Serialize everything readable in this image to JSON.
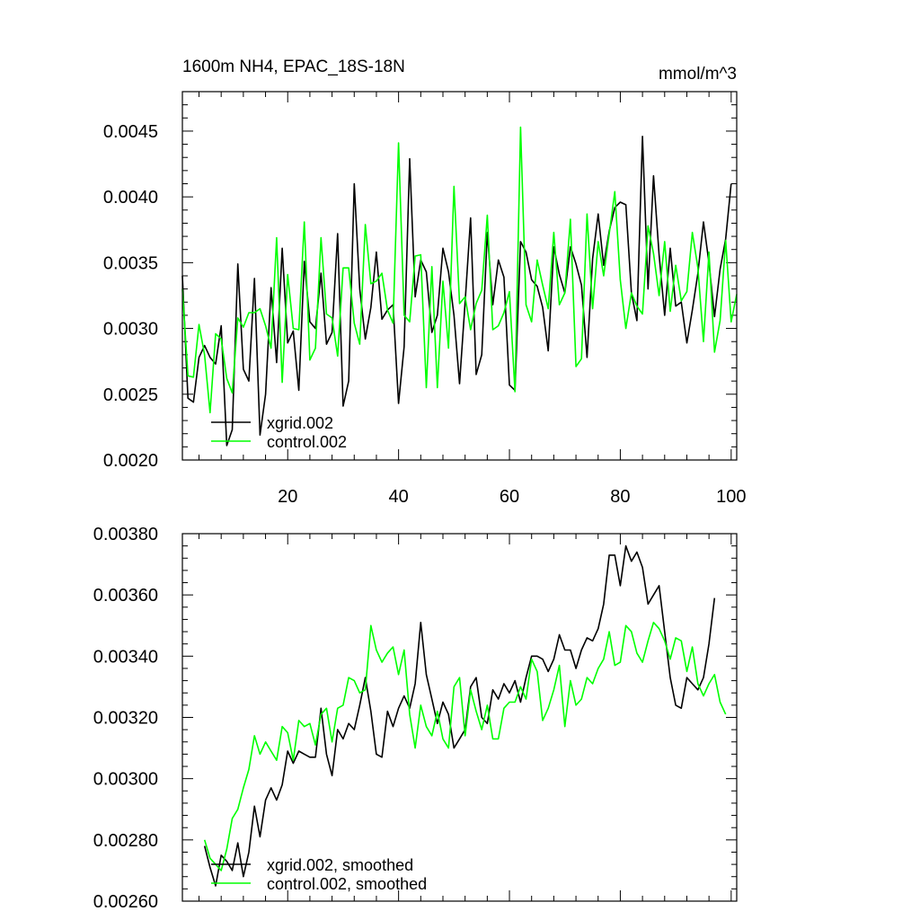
{
  "chart_data": [
    {
      "type": "line",
      "title": "1600m NH4, EPAC_18S-18N",
      "units": "mmol/m^3",
      "xlabel": "",
      "ylabel": "",
      "xlim": [
        1,
        101
      ],
      "ylim": [
        0.002,
        0.0048
      ],
      "xticks": [
        20,
        40,
        60,
        80,
        100
      ],
      "yticks": [
        0.002,
        0.0025,
        0.003,
        0.0035,
        0.004,
        0.0045
      ],
      "ytick_labels": [
        "0.0020",
        "0.0025",
        "0.0030",
        "0.0035",
        "0.0040",
        "0.0045"
      ],
      "xtick_labels": [
        "20",
        "40",
        "60",
        "80",
        "100"
      ],
      "legend_position": "bottom-left",
      "series": [
        {
          "name": "xgrid.002",
          "color": "#000000",
          "x_start": 1,
          "values": [
            0.0034,
            0.00247,
            0.00244,
            0.00278,
            0.00287,
            0.00278,
            0.00273,
            0.00302,
            0.00211,
            0.00223,
            0.00349,
            0.00269,
            0.0026,
            0.00338,
            0.00219,
            0.0025,
            0.00331,
            0.00274,
            0.00361,
            0.00289,
            0.00298,
            0.00253,
            0.00351,
            0.00305,
            0.003,
            0.00342,
            0.00288,
            0.00297,
            0.00372,
            0.00241,
            0.0026,
            0.0041,
            0.0033,
            0.00292,
            0.00316,
            0.00358,
            0.00307,
            0.00314,
            0.00318,
            0.00243,
            0.00286,
            0.00429,
            0.00324,
            0.00352,
            0.00343,
            0.00297,
            0.0031,
            0.00361,
            0.00343,
            0.0031,
            0.00258,
            0.0032,
            0.00384,
            0.00265,
            0.0028,
            0.00373,
            0.00318,
            0.00352,
            0.00339,
            0.00257,
            0.00253,
            0.00366,
            0.00358,
            0.00337,
            0.00332,
            0.00316,
            0.00283,
            0.00362,
            0.00341,
            0.00327,
            0.00362,
            0.00349,
            0.00333,
            0.00278,
            0.00353,
            0.00387,
            0.00348,
            0.00374,
            0.00392,
            0.00396,
            0.00394,
            0.00327,
            0.00306,
            0.00446,
            0.0033,
            0.00416,
            0.00356,
            0.0031,
            0.00361,
            0.00317,
            0.0032,
            0.00289,
            0.00314,
            0.00342,
            0.00381,
            0.0035,
            0.00309,
            0.00345,
            0.00368,
            0.0041
          ]
        },
        {
          "name": "control.002",
          "color": "#00ff00",
          "x_start": 1,
          "values": [
            0.0033,
            0.00264,
            0.00263,
            0.00303,
            0.0028,
            0.00236,
            0.00296,
            0.00292,
            0.00262,
            0.00251,
            0.00308,
            0.00301,
            0.00312,
            0.00312,
            0.00315,
            0.00302,
            0.00285,
            0.00369,
            0.00259,
            0.00341,
            0.003,
            0.00299,
            0.00381,
            0.00276,
            0.00285,
            0.00369,
            0.00311,
            0.00308,
            0.00279,
            0.00346,
            0.00346,
            0.00304,
            0.00288,
            0.00379,
            0.00334,
            0.00336,
            0.00342,
            0.00314,
            0.00304,
            0.00441,
            0.0031,
            0.00305,
            0.00355,
            0.00356,
            0.00255,
            0.00347,
            0.00255,
            0.00336,
            0.00285,
            0.00408,
            0.00319,
            0.00324,
            0.00299,
            0.00319,
            0.00329,
            0.00386,
            0.00299,
            0.00302,
            0.00312,
            0.00328,
            0.00252,
            0.00453,
            0.00318,
            0.00305,
            0.00352,
            0.00333,
            0.00315,
            0.00373,
            0.00318,
            0.00327,
            0.00383,
            0.00271,
            0.00277,
            0.00387,
            0.00315,
            0.00366,
            0.0034,
            0.00372,
            0.00404,
            0.00337,
            0.003,
            0.00327,
            0.00317,
            0.00311,
            0.00378,
            0.00357,
            0.00325,
            0.00366,
            0.00313,
            0.00348,
            0.00321,
            0.00328,
            0.00373,
            0.00346,
            0.0029,
            0.00358,
            0.00282,
            0.00306,
            0.00367,
            0.00305,
            0.00326
          ]
        }
      ]
    },
    {
      "type": "line",
      "title": "",
      "xlabel": "",
      "ylabel": "",
      "xlim": [
        1,
        101
      ],
      "ylim": [
        0.0026,
        0.0038
      ],
      "xticks": [
        20,
        40,
        60,
        80,
        100
      ],
      "yticks": [
        0.0026,
        0.0028,
        0.003,
        0.0032,
        0.0034,
        0.0036,
        0.0038
      ],
      "ytick_labels": [
        "0.00260",
        "0.00280",
        "0.00300",
        "0.00320",
        "0.00340",
        "0.00360",
        "0.00380"
      ],
      "legend_position": "bottom-left",
      "series": [
        {
          "name": "xgrid.002, smoothed",
          "color": "#000000",
          "x_start": 5,
          "values": [
            0.00278,
            0.00271,
            0.00265,
            0.00275,
            0.00273,
            0.0027,
            0.00279,
            0.00268,
            0.00276,
            0.00291,
            0.00281,
            0.00293,
            0.00297,
            0.00293,
            0.00298,
            0.00309,
            0.00305,
            0.00309,
            0.00308,
            0.00307,
            0.00307,
            0.00323,
            0.00308,
            0.00301,
            0.00316,
            0.00313,
            0.00318,
            0.00316,
            0.00324,
            0.00333,
            0.00322,
            0.00308,
            0.00307,
            0.00322,
            0.00317,
            0.00323,
            0.00327,
            0.00323,
            0.00331,
            0.00351,
            0.00334,
            0.00326,
            0.00318,
            0.00325,
            0.00321,
            0.0031,
            0.00313,
            0.00316,
            0.0033,
            0.00333,
            0.0032,
            0.00318,
            0.00329,
            0.00326,
            0.00331,
            0.00328,
            0.00332,
            0.00325,
            0.00333,
            0.0034,
            0.0034,
            0.00339,
            0.00335,
            0.00339,
            0.00347,
            0.00342,
            0.00342,
            0.00336,
            0.00342,
            0.00346,
            0.00345,
            0.00349,
            0.00357,
            0.00373,
            0.00373,
            0.00363,
            0.00376,
            0.00371,
            0.00374,
            0.00369,
            0.00357,
            0.0036,
            0.00363,
            0.00348,
            0.00333,
            0.00324,
            0.00323,
            0.00333,
            0.00331,
            0.00329,
            0.00333,
            0.00344,
            0.00359
          ]
        },
        {
          "name": "control.002, smoothed",
          "color": "#00ff00",
          "x_start": 5,
          "values": [
            0.0028,
            0.00274,
            0.00272,
            0.0027,
            0.00277,
            0.00287,
            0.0029,
            0.00297,
            0.00303,
            0.00314,
            0.00308,
            0.00312,
            0.00309,
            0.00306,
            0.00317,
            0.00315,
            0.00306,
            0.00319,
            0.00317,
            0.00318,
            0.00311,
            0.00321,
            0.00323,
            0.00312,
            0.00323,
            0.00324,
            0.00333,
            0.00332,
            0.00328,
            0.00329,
            0.0035,
            0.00342,
            0.00338,
            0.00341,
            0.00343,
            0.00334,
            0.00342,
            0.00321,
            0.0031,
            0.00324,
            0.00317,
            0.00314,
            0.00322,
            0.00313,
            0.0031,
            0.0033,
            0.00333,
            0.00314,
            0.00329,
            0.00322,
            0.00316,
            0.00324,
            0.00313,
            0.00313,
            0.00323,
            0.00325,
            0.00325,
            0.0033,
            0.00326,
            0.00339,
            0.00335,
            0.00319,
            0.00323,
            0.00329,
            0.00337,
            0.00317,
            0.00332,
            0.00324,
            0.00326,
            0.00333,
            0.00331,
            0.00336,
            0.00339,
            0.00348,
            0.00337,
            0.00338,
            0.0035,
            0.00348,
            0.00341,
            0.00338,
            0.00345,
            0.00351,
            0.00349,
            0.00345,
            0.00339,
            0.00346,
            0.00345,
            0.00335,
            0.00343,
            0.00331,
            0.00327,
            0.00331,
            0.00334,
            0.00325,
            0.00321
          ]
        }
      ]
    }
  ]
}
